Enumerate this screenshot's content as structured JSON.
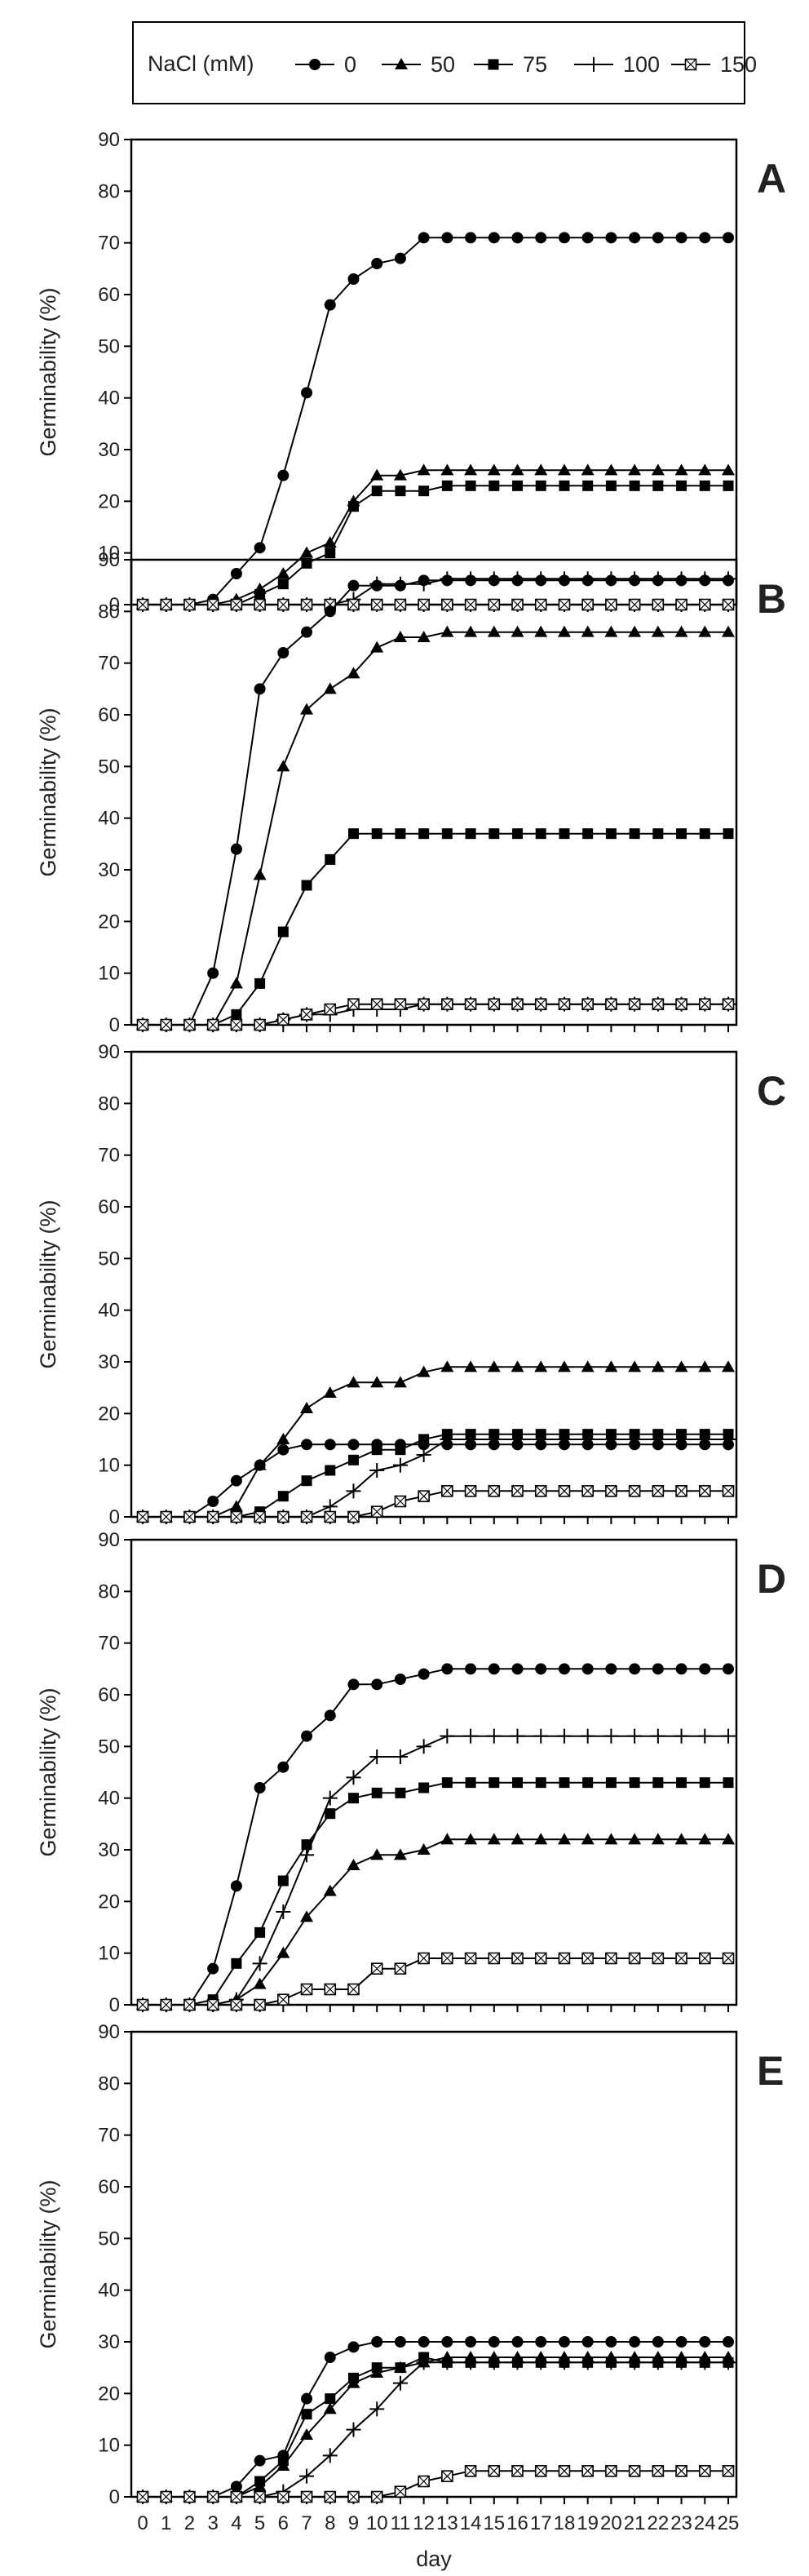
{
  "legend": {
    "title": "NaCl (mM)",
    "placement": "top",
    "entries": [
      {
        "label": "0",
        "marker": "circle-filled"
      },
      {
        "label": "50",
        "marker": "triangle-filled"
      },
      {
        "label": "75",
        "marker": "square-filled"
      },
      {
        "label": "100",
        "marker": "plus"
      },
      {
        "label": "150",
        "marker": "square-crossed"
      }
    ]
  },
  "chart_data": {
    "type": "line",
    "xlabel": "day",
    "ylabel": "Germinability (%)",
    "xlim": [
      0,
      25
    ],
    "ylim": [
      0,
      90
    ],
    "x": [
      0,
      1,
      2,
      3,
      4,
      5,
      6,
      7,
      8,
      9,
      10,
      11,
      12,
      13,
      14,
      15,
      16,
      17,
      18,
      19,
      20,
      21,
      22,
      23,
      24,
      25
    ],
    "x_tick_labels": [
      "0",
      "1",
      "2",
      "3",
      "4",
      "5",
      "6",
      "7",
      "8",
      "9",
      "10",
      "11",
      "12",
      "13",
      "14",
      "15",
      "16",
      "17",
      "18",
      "19",
      "20",
      "21",
      "22",
      "23",
      "24",
      "25"
    ],
    "y_tick_labels": [
      "0",
      "10",
      "20",
      "30",
      "40",
      "50",
      "60",
      "70",
      "80",
      "90"
    ],
    "panels": [
      {
        "label": "A",
        "series": [
          {
            "name": "0",
            "values": [
              0,
              0,
              0,
              1,
              6,
              11,
              25,
              41,
              58,
              63,
              66,
              67,
              71,
              71,
              71,
              71,
              71,
              71,
              71,
              71,
              71,
              71,
              71,
              71,
              71,
              71
            ]
          },
          {
            "name": "50",
            "values": [
              0,
              0,
              0,
              0,
              1,
              3,
              6,
              10,
              12,
              20,
              25,
              25,
              26,
              26,
              26,
              26,
              26,
              26,
              26,
              26,
              26,
              26,
              26,
              26,
              26,
              26
            ]
          },
          {
            "name": "75",
            "values": [
              0,
              0,
              0,
              0,
              0,
              2,
              4,
              8,
              10,
              19,
              22,
              22,
              22,
              23,
              23,
              23,
              23,
              23,
              23,
              23,
              23,
              23,
              23,
              23,
              23,
              23
            ]
          },
          {
            "name": "100",
            "values": [
              0,
              0,
              0,
              0,
              0,
              0,
              0,
              0,
              0,
              1,
              4,
              4,
              4,
              5,
              5,
              5,
              5,
              5,
              5,
              5,
              5,
              5,
              5,
              5,
              5,
              5
            ]
          },
          {
            "name": "150",
            "values": [
              0,
              0,
              0,
              0,
              0,
              0,
              0,
              0,
              0,
              0,
              0,
              0,
              0,
              0,
              0,
              0,
              0,
              0,
              0,
              0,
              0,
              0,
              0,
              0,
              0,
              0
            ]
          }
        ]
      },
      {
        "label": "B",
        "series": [
          {
            "name": "0",
            "values": [
              0,
              0,
              0,
              10,
              34,
              65,
              72,
              76,
              80,
              85,
              85,
              85,
              86,
              86,
              86,
              86,
              86,
              86,
              86,
              86,
              86,
              86,
              86,
              86,
              86,
              86
            ]
          },
          {
            "name": "50",
            "values": [
              0,
              0,
              0,
              0,
              8,
              29,
              50,
              61,
              65,
              68,
              73,
              75,
              75,
              76,
              76,
              76,
              76,
              76,
              76,
              76,
              76,
              76,
              76,
              76,
              76,
              76
            ]
          },
          {
            "name": "75",
            "values": [
              0,
              0,
              0,
              0,
              2,
              8,
              18,
              27,
              32,
              37,
              37,
              37,
              37,
              37,
              37,
              37,
              37,
              37,
              37,
              37,
              37,
              37,
              37,
              37,
              37,
              37
            ]
          },
          {
            "name": "100",
            "values": [
              0,
              0,
              0,
              0,
              0,
              0,
              1,
              2,
              2,
              3,
              3,
              3,
              4,
              4,
              4,
              4,
              4,
              4,
              4,
              4,
              4,
              4,
              4,
              4,
              4,
              4
            ]
          },
          {
            "name": "150",
            "values": [
              0,
              0,
              0,
              0,
              0,
              0,
              1,
              2,
              3,
              4,
              4,
              4,
              4,
              4,
              4,
              4,
              4,
              4,
              4,
              4,
              4,
              4,
              4,
              4,
              4,
              4
            ]
          }
        ]
      },
      {
        "label": "C",
        "series": [
          {
            "name": "0",
            "values": [
              0,
              0,
              0,
              3,
              7,
              10,
              13,
              14,
              14,
              14,
              14,
              14,
              14,
              14,
              14,
              14,
              14,
              14,
              14,
              14,
              14,
              14,
              14,
              14,
              14,
              14
            ]
          },
          {
            "name": "50",
            "values": [
              0,
              0,
              0,
              0,
              2,
              10,
              15,
              21,
              24,
              26,
              26,
              26,
              28,
              29,
              29,
              29,
              29,
              29,
              29,
              29,
              29,
              29,
              29,
              29,
              29,
              29
            ]
          },
          {
            "name": "75",
            "values": [
              0,
              0,
              0,
              0,
              0,
              1,
              4,
              7,
              9,
              11,
              13,
              13,
              15,
              16,
              16,
              16,
              16,
              16,
              16,
              16,
              16,
              16,
              16,
              16,
              16,
              16
            ]
          },
          {
            "name": "100",
            "values": [
              0,
              0,
              0,
              0,
              0,
              0,
              0,
              0,
              2,
              5,
              9,
              10,
              12,
              15,
              15,
              15,
              15,
              15,
              15,
              15,
              15,
              15,
              15,
              15,
              15,
              15
            ]
          },
          {
            "name": "150",
            "values": [
              0,
              0,
              0,
              0,
              0,
              0,
              0,
              0,
              0,
              0,
              1,
              3,
              4,
              5,
              5,
              5,
              5,
              5,
              5,
              5,
              5,
              5,
              5,
              5,
              5,
              5
            ]
          }
        ]
      },
      {
        "label": "D",
        "series": [
          {
            "name": "0",
            "values": [
              0,
              0,
              0,
              7,
              23,
              42,
              46,
              52,
              56,
              62,
              62,
              63,
              64,
              65,
              65,
              65,
              65,
              65,
              65,
              65,
              65,
              65,
              65,
              65,
              65,
              65
            ]
          },
          {
            "name": "50",
            "values": [
              0,
              0,
              0,
              0,
              1,
              4,
              10,
              17,
              22,
              27,
              29,
              29,
              30,
              32,
              32,
              32,
              32,
              32,
              32,
              32,
              32,
              32,
              32,
              32,
              32,
              32
            ]
          },
          {
            "name": "75",
            "values": [
              0,
              0,
              0,
              1,
              8,
              14,
              24,
              31,
              37,
              40,
              41,
              41,
              42,
              43,
              43,
              43,
              43,
              43,
              43,
              43,
              43,
              43,
              43,
              43,
              43,
              43
            ]
          },
          {
            "name": "100",
            "values": [
              0,
              0,
              0,
              0,
              1,
              8,
              18,
              29,
              40,
              44,
              48,
              48,
              50,
              52,
              52,
              52,
              52,
              52,
              52,
              52,
              52,
              52,
              52,
              52,
              52,
              52
            ]
          },
          {
            "name": "150",
            "values": [
              0,
              0,
              0,
              0,
              0,
              0,
              1,
              3,
              3,
              3,
              7,
              7,
              9,
              9,
              9,
              9,
              9,
              9,
              9,
              9,
              9,
              9,
              9,
              9,
              9,
              9
            ]
          }
        ]
      },
      {
        "label": "E",
        "series": [
          {
            "name": "0",
            "values": [
              0,
              0,
              0,
              0,
              2,
              7,
              8,
              19,
              27,
              29,
              30,
              30,
              30,
              30,
              30,
              30,
              30,
              30,
              30,
              30,
              30,
              30,
              30,
              30,
              30,
              30
            ]
          },
          {
            "name": "50",
            "values": [
              0,
              0,
              0,
              0,
              0,
              2,
              6,
              12,
              17,
              22,
              24,
              25,
              26,
              27,
              27,
              27,
              27,
              27,
              27,
              27,
              27,
              27,
              27,
              27,
              27,
              27
            ]
          },
          {
            "name": "75",
            "values": [
              0,
              0,
              0,
              0,
              0,
              3,
              7,
              16,
              19,
              23,
              25,
              25,
              27,
              26,
              26,
              26,
              26,
              26,
              26,
              26,
              26,
              26,
              26,
              26,
              26,
              26
            ]
          },
          {
            "name": "100",
            "values": [
              0,
              0,
              0,
              0,
              0,
              0,
              1,
              4,
              8,
              13,
              17,
              22,
              26,
              26,
              26,
              26,
              26,
              26,
              26,
              26,
              26,
              26,
              26,
              26,
              26,
              26
            ]
          },
          {
            "name": "150",
            "values": [
              0,
              0,
              0,
              0,
              0,
              0,
              0,
              0,
              0,
              0,
              0,
              1,
              3,
              4,
              5,
              5,
              5,
              5,
              5,
              5,
              5,
              5,
              5,
              5,
              5,
              5
            ]
          }
        ]
      }
    ]
  }
}
